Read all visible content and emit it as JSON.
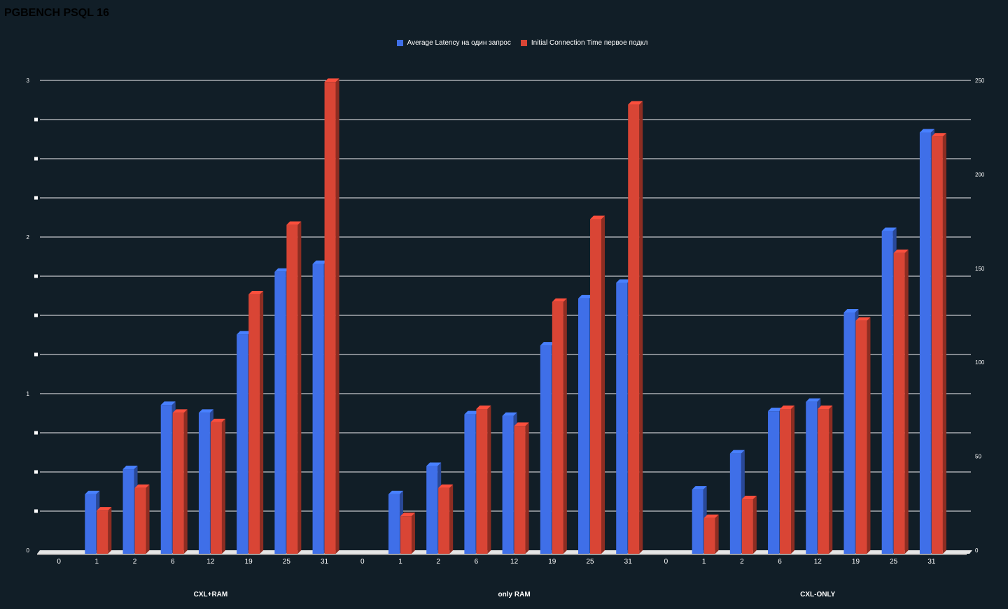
{
  "title": "PGBENCH PSQL 16",
  "chart_data": {
    "type": "bar",
    "title": "PGBENCH PSQL 16",
    "legend_position": "top-center",
    "grid": true,
    "groups": [
      {
        "name": "CXL+RAM",
        "categories": [
          "0",
          "1",
          "2",
          "6",
          "12",
          "19",
          "25",
          "31"
        ]
      },
      {
        "name": "only  RAM",
        "categories": [
          "0",
          "1",
          "2",
          "6",
          "12",
          "19",
          "25",
          "31"
        ]
      },
      {
        "name": "CXL-ONLY",
        "categories": [
          "0",
          "1",
          "2",
          "6",
          "12",
          "19",
          "25",
          "31"
        ]
      }
    ],
    "series": [
      {
        "name": "Average Latency на один запрос",
        "axis": "left",
        "color": "#3f6fe8",
        "values": [
          0,
          0.38,
          0.54,
          0.95,
          0.9,
          1.4,
          1.8,
          1.85,
          0,
          0.38,
          0.56,
          0.89,
          0.88,
          1.33,
          1.63,
          1.73,
          0,
          0.41,
          0.64,
          0.91,
          0.97,
          1.54,
          2.06,
          2.69
        ]
      },
      {
        "name": "Initial Connection Time первое подкл",
        "axis": "right",
        "color": "#d94535",
        "values": [
          0,
          23,
          35,
          75,
          70,
          138,
          175,
          251,
          0,
          20,
          35,
          77,
          68,
          134,
          178,
          239,
          0,
          19,
          29,
          77,
          77,
          124,
          160,
          222
        ]
      }
    ],
    "y_left": {
      "min": 0,
      "max": 3,
      "ticks": [
        "0",
        "1",
        "2",
        "3"
      ]
    },
    "y_right": {
      "min": 0,
      "max": 250,
      "ticks": [
        "0",
        "50",
        "100",
        "150",
        "200",
        "250"
      ]
    }
  }
}
